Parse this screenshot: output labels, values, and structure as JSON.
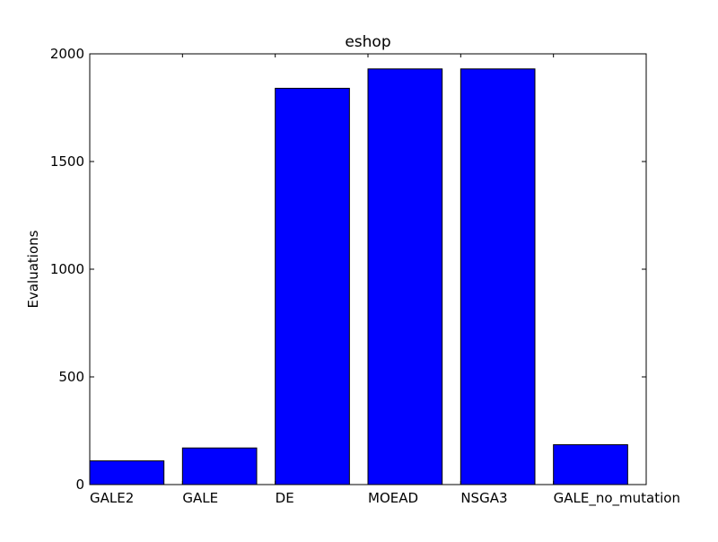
{
  "chart_data": {
    "type": "bar",
    "title": "eshop",
    "xlabel": "",
    "ylabel": "Evaluations",
    "categories": [
      "GALE2",
      "GALE",
      "DE",
      "MOEAD",
      "NSGA3",
      "GALE_no_mutation"
    ],
    "values": [
      110,
      170,
      1840,
      1930,
      1930,
      185
    ],
    "ylim": [
      0,
      2000
    ],
    "yticks": [
      0,
      500,
      1000,
      1500,
      2000
    ],
    "grid": false,
    "legend": "none",
    "bar_color": "#0000ff",
    "edge_color": "#000000"
  }
}
